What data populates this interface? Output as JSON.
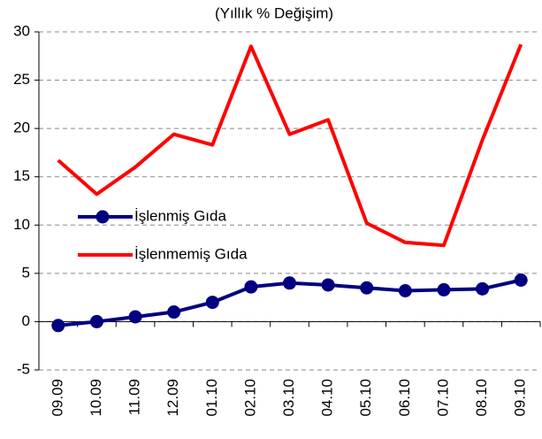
{
  "chart_data": {
    "type": "line",
    "title": "(Yıllık % Değişim)",
    "categories": [
      "09.09",
      "10.09",
      "11.09",
      "12.09",
      "01.10",
      "02.10",
      "03.10",
      "04.10",
      "05.10",
      "06.10",
      "07.10",
      "08.10",
      "09.10"
    ],
    "series": [
      {
        "name": "İşlenmiş Gıda",
        "color": "#000080",
        "marker": true,
        "values": [
          -0.4,
          0.0,
          0.5,
          1.0,
          2.0,
          3.6,
          4.0,
          3.8,
          3.5,
          3.2,
          3.3,
          3.4,
          4.3
        ]
      },
      {
        "name": "İşlenmemiş Gıda",
        "color": "#ff0000",
        "marker": false,
        "values": [
          16.7,
          13.2,
          16.0,
          19.4,
          18.3,
          28.5,
          19.4,
          20.9,
          10.2,
          8.2,
          7.9,
          18.8,
          28.7
        ]
      }
    ],
    "ylim": [
      -5,
      30
    ],
    "yticks": [
      -5,
      0,
      5,
      10,
      15,
      20,
      25,
      30
    ],
    "grid": true
  }
}
